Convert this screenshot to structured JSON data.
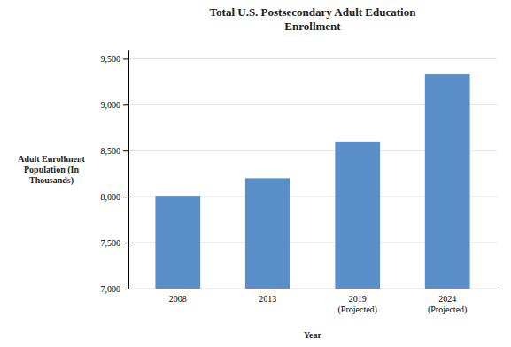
{
  "chart_data": {
    "type": "bar",
    "title": "Total U.S. Postsecondary Adult Education\nEnrollment",
    "categories": [
      "2008",
      "2013",
      "2019\n(Projected)",
      "2024\n(Projected)"
    ],
    "values": [
      8010,
      8200,
      8600,
      9330
    ],
    "color": "#5b8fc9",
    "xlabel": "Year",
    "ylabel": "Adult Enrollment\nPopulation (In\nThousands)",
    "ylim": [
      7000,
      9600
    ],
    "yticks": [
      {
        "value": 7000,
        "label": "7,000"
      },
      {
        "value": 7500,
        "label": "7,500"
      },
      {
        "value": 8000,
        "label": "8,000"
      },
      {
        "value": 8500,
        "label": "8,500"
      },
      {
        "value": 9000,
        "label": "9,000"
      },
      {
        "value": 9500,
        "label": "9,500"
      }
    ],
    "grid": true
  }
}
